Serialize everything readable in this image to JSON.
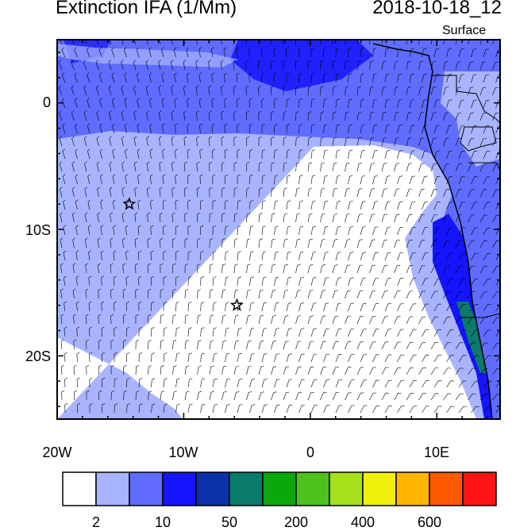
{
  "title": "Extinction IFA (1/Mm)",
  "datetime": "2018-10-18_12",
  "level": "Surface",
  "map": {
    "lon_range": [
      -20,
      15
    ],
    "lat_range": [
      -25,
      5
    ],
    "y_ticks": [
      "0",
      "10S",
      "20S"
    ],
    "x_ticks": [
      "20W",
      "10W",
      "0",
      "10E"
    ],
    "markers": [
      {
        "name": "star-1",
        "lon": -14.3,
        "lat": -8.0
      },
      {
        "name": "star-2",
        "lon": -5.8,
        "lat": -16.0
      }
    ]
  },
  "colorbar": {
    "colors": [
      "#ffffff",
      "#a9b4ff",
      "#5f6cff",
      "#1414ff",
      "#0a32a8",
      "#0a7a6a",
      "#0aa80a",
      "#4ec21a",
      "#a6e01a",
      "#f0f00a",
      "#ffb400",
      "#ff5a00",
      "#ff1414"
    ],
    "labels": [
      "2",
      "10",
      "50",
      "200",
      "400",
      "600"
    ]
  },
  "colors": {
    "ocean_light": "#a9b4ff",
    "ocean_mid": "#5f6cff",
    "clear": "#ffffff"
  }
}
